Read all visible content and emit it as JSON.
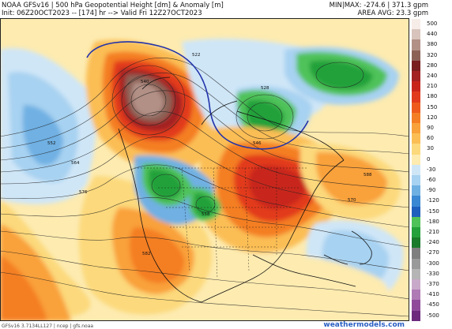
{
  "header": {
    "line1_left": "NOAA GFSv16 | 500 hPa Geopotential Height [dm] & Anomaly [m]",
    "line2_left": "Init: 06Z20OCT2023 -- [174] hr --> Valid Fri 12Z27OCT2023",
    "line1_right": "MIN|MAX: -274.6 | 371.3 gpm",
    "line2_right": "AREA AVG: 23.3 gpm"
  },
  "colorbar": {
    "levels": [
      {
        "label": "500",
        "color": "#f6ece8"
      },
      {
        "label": "440",
        "color": "#d8c4bd"
      },
      {
        "label": "380",
        "color": "#b29086"
      },
      {
        "label": "320",
        "color": "#8c6257"
      },
      {
        "label": "280",
        "color": "#7a1f1f"
      },
      {
        "label": "240",
        "color": "#a32222"
      },
      {
        "label": "210",
        "color": "#c8261b"
      },
      {
        "label": "180",
        "color": "#e23a1c"
      },
      {
        "label": "150",
        "color": "#ee5a1c"
      },
      {
        "label": "120",
        "color": "#f47e24"
      },
      {
        "label": "90",
        "color": "#f9a13a"
      },
      {
        "label": "60",
        "color": "#fbbe55"
      },
      {
        "label": "30",
        "color": "#fcd97c"
      },
      {
        "label": "0",
        "color": "#fdebb0"
      },
      {
        "label": "-30",
        "color": "#cfe6f7"
      },
      {
        "label": "-60",
        "color": "#a7d2f1"
      },
      {
        "label": "-90",
        "color": "#6fb0e3"
      },
      {
        "label": "-120",
        "color": "#3a88d3"
      },
      {
        "label": "-150",
        "color": "#1e5fbd"
      },
      {
        "label": "-180",
        "color": "#4fc25a"
      },
      {
        "label": "-210",
        "color": "#24a13a"
      },
      {
        "label": "-240",
        "color": "#1a7b2b"
      },
      {
        "label": "-270",
        "color": "#7f7f7f"
      },
      {
        "label": "-300",
        "color": "#9a9a9a"
      },
      {
        "label": "-330",
        "color": "#b5b5b5"
      },
      {
        "label": "-370",
        "color": "#c9a9c9"
      },
      {
        "label": "-410",
        "color": "#b07ab5"
      },
      {
        "label": "-450",
        "color": "#8f4b9a"
      },
      {
        "label": "-500",
        "color": "#6d2a7d"
      }
    ]
  },
  "map": {
    "contour_labels": [
      "522",
      "540",
      "552",
      "564",
      "576",
      "588",
      "528",
      "546",
      "558",
      "570",
      "582"
    ]
  },
  "footer": {
    "left": "GFSv16 3.7134LL127 | ncep | gfs.noaa",
    "right": "weathermodels.com"
  }
}
